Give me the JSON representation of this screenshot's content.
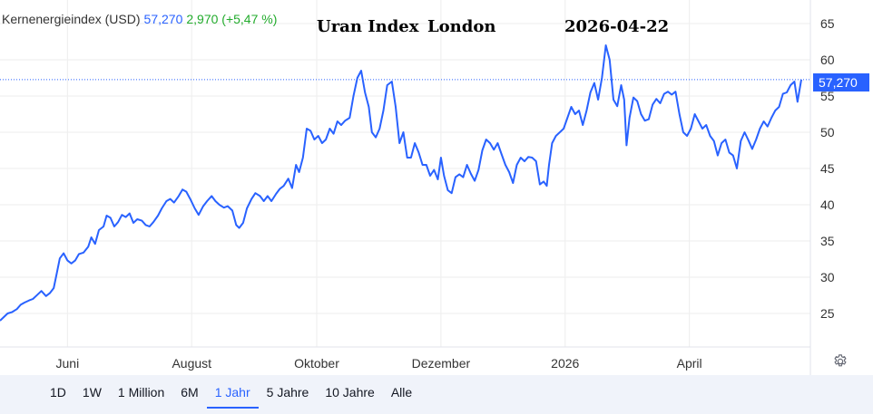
{
  "legend": {
    "name": "Kernenergieindex (USD)",
    "price": "57,270",
    "change": "2,970 (+5,47 %)"
  },
  "overlay": {
    "title": "Uran Index",
    "location": "London",
    "date": "2026-04-22"
  },
  "price_tag": "57,270",
  "colors": {
    "line": "#2962ff",
    "positive": "#22ab2c",
    "grid": "#eeeeee",
    "background": "#ffffff",
    "bar": "#f0f3fa"
  },
  "settings_icon": "gear-icon",
  "time_ranges": {
    "items": [
      {
        "label": "1D"
      },
      {
        "label": "1W"
      },
      {
        "label": "1 Million"
      },
      {
        "label": "6M"
      },
      {
        "label": "1 Jahr"
      },
      {
        "label": "5 Jahre"
      },
      {
        "label": "10 Jahre"
      },
      {
        "label": "Alle"
      }
    ],
    "active": "1 Jahr"
  },
  "chart_data": {
    "type": "line",
    "title": "",
    "xlabel": "",
    "ylabel": "",
    "ylim": [
      20,
      67
    ],
    "y_ticks": [
      25,
      30,
      35,
      40,
      45,
      50,
      55,
      60,
      65
    ],
    "grid": true,
    "x_ticks": [
      {
        "label": "Juni",
        "t": 0.088
      },
      {
        "label": "August",
        "t": 0.25
      },
      {
        "label": "Oktober",
        "t": 0.413
      },
      {
        "label": "Dezember",
        "t": 0.575
      },
      {
        "label": "2026",
        "t": 0.737
      },
      {
        "label": "April",
        "t": 0.899
      }
    ],
    "last_value": 57.27,
    "series": [
      {
        "points": [
          [
            0.0,
            24.0
          ],
          [
            0.005,
            24.5
          ],
          [
            0.01,
            25.0
          ],
          [
            0.016,
            25.2
          ],
          [
            0.022,
            25.6
          ],
          [
            0.027,
            26.2
          ],
          [
            0.032,
            26.5
          ],
          [
            0.038,
            26.8
          ],
          [
            0.043,
            27.0
          ],
          [
            0.049,
            27.6
          ],
          [
            0.054,
            28.1
          ],
          [
            0.06,
            27.4
          ],
          [
            0.065,
            27.8
          ],
          [
            0.07,
            28.5
          ],
          [
            0.074,
            30.5
          ],
          [
            0.078,
            32.6
          ],
          [
            0.083,
            33.3
          ],
          [
            0.088,
            32.3
          ],
          [
            0.093,
            31.9
          ],
          [
            0.098,
            32.3
          ],
          [
            0.103,
            33.2
          ],
          [
            0.109,
            33.4
          ],
          [
            0.115,
            34.2
          ],
          [
            0.119,
            35.5
          ],
          [
            0.124,
            34.6
          ],
          [
            0.129,
            36.5
          ],
          [
            0.135,
            37.0
          ],
          [
            0.139,
            38.5
          ],
          [
            0.144,
            38.2
          ],
          [
            0.149,
            37.0
          ],
          [
            0.154,
            37.6
          ],
          [
            0.159,
            38.6
          ],
          [
            0.164,
            38.3
          ],
          [
            0.169,
            38.8
          ],
          [
            0.174,
            37.5
          ],
          [
            0.179,
            38.0
          ],
          [
            0.185,
            37.8
          ],
          [
            0.19,
            37.2
          ],
          [
            0.195,
            37.0
          ],
          [
            0.2,
            37.6
          ],
          [
            0.206,
            38.5
          ],
          [
            0.211,
            39.5
          ],
          [
            0.217,
            40.5
          ],
          [
            0.222,
            40.8
          ],
          [
            0.227,
            40.3
          ],
          [
            0.233,
            41.2
          ],
          [
            0.238,
            42.1
          ],
          [
            0.243,
            41.8
          ],
          [
            0.248,
            40.8
          ],
          [
            0.254,
            39.5
          ],
          [
            0.259,
            38.6
          ],
          [
            0.265,
            39.8
          ],
          [
            0.27,
            40.5
          ],
          [
            0.276,
            41.2
          ],
          [
            0.281,
            40.5
          ],
          [
            0.286,
            40.0
          ],
          [
            0.292,
            39.6
          ],
          [
            0.297,
            39.8
          ],
          [
            0.303,
            39.2
          ],
          [
            0.308,
            37.2
          ],
          [
            0.312,
            36.8
          ],
          [
            0.317,
            37.5
          ],
          [
            0.322,
            39.5
          ],
          [
            0.328,
            40.8
          ],
          [
            0.333,
            41.6
          ],
          [
            0.339,
            41.2
          ],
          [
            0.344,
            40.5
          ],
          [
            0.349,
            41.2
          ],
          [
            0.354,
            40.5
          ],
          [
            0.36,
            41.5
          ],
          [
            0.365,
            42.2
          ],
          [
            0.37,
            42.6
          ],
          [
            0.376,
            43.6
          ],
          [
            0.381,
            42.3
          ],
          [
            0.386,
            45.5
          ],
          [
            0.39,
            44.5
          ],
          [
            0.395,
            46.5
          ],
          [
            0.4,
            50.5
          ],
          [
            0.405,
            50.2
          ],
          [
            0.41,
            49.0
          ],
          [
            0.415,
            49.5
          ],
          [
            0.42,
            48.5
          ],
          [
            0.425,
            49.0
          ],
          [
            0.43,
            50.5
          ],
          [
            0.435,
            49.8
          ],
          [
            0.44,
            51.5
          ],
          [
            0.445,
            51.0
          ],
          [
            0.45,
            51.6
          ],
          [
            0.456,
            52.0
          ],
          [
            0.461,
            55.0
          ],
          [
            0.466,
            57.5
          ],
          [
            0.471,
            58.5
          ],
          [
            0.476,
            55.5
          ],
          [
            0.481,
            53.5
          ],
          [
            0.485,
            50.0
          ],
          [
            0.49,
            49.3
          ],
          [
            0.495,
            50.5
          ],
          [
            0.5,
            53.0
          ],
          [
            0.505,
            56.5
          ],
          [
            0.511,
            57.0
          ],
          [
            0.516,
            53.5
          ],
          [
            0.521,
            48.5
          ],
          [
            0.526,
            50.0
          ],
          [
            0.531,
            46.5
          ],
          [
            0.536,
            46.5
          ],
          [
            0.541,
            48.5
          ],
          [
            0.546,
            47.2
          ],
          [
            0.551,
            45.5
          ],
          [
            0.556,
            45.5
          ],
          [
            0.561,
            44.0
          ],
          [
            0.566,
            44.8
          ],
          [
            0.571,
            43.5
          ],
          [
            0.575,
            46.5
          ],
          [
            0.579,
            44.0
          ],
          [
            0.584,
            42.0
          ],
          [
            0.589,
            41.6
          ],
          [
            0.594,
            43.8
          ],
          [
            0.599,
            44.2
          ],
          [
            0.604,
            43.8
          ],
          [
            0.609,
            45.5
          ],
          [
            0.614,
            44.3
          ],
          [
            0.619,
            43.3
          ],
          [
            0.624,
            44.8
          ],
          [
            0.629,
            47.5
          ],
          [
            0.634,
            49.0
          ],
          [
            0.639,
            48.5
          ],
          [
            0.644,
            47.6
          ],
          [
            0.649,
            48.5
          ],
          [
            0.654,
            47.0
          ],
          [
            0.659,
            45.5
          ],
          [
            0.664,
            44.5
          ],
          [
            0.669,
            43.0
          ],
          [
            0.674,
            45.5
          ],
          [
            0.679,
            46.5
          ],
          [
            0.684,
            46.0
          ],
          [
            0.689,
            46.6
          ],
          [
            0.694,
            46.5
          ],
          [
            0.699,
            46.0
          ],
          [
            0.704,
            42.8
          ],
          [
            0.709,
            43.2
          ],
          [
            0.713,
            42.6
          ],
          [
            0.716,
            45.5
          ],
          [
            0.72,
            48.5
          ],
          [
            0.725,
            49.5
          ],
          [
            0.73,
            50.0
          ],
          [
            0.735,
            50.5
          ],
          [
            0.74,
            52.0
          ],
          [
            0.745,
            53.5
          ],
          [
            0.75,
            52.5
          ],
          [
            0.755,
            53.0
          ],
          [
            0.76,
            51.0
          ],
          [
            0.765,
            53.0
          ],
          [
            0.77,
            55.5
          ],
          [
            0.775,
            56.8
          ],
          [
            0.78,
            54.5
          ],
          [
            0.785,
            57.5
          ],
          [
            0.79,
            62.0
          ],
          [
            0.795,
            60.0
          ],
          [
            0.8,
            54.5
          ],
          [
            0.805,
            53.6
          ],
          [
            0.81,
            56.5
          ],
          [
            0.814,
            54.5
          ],
          [
            0.817,
            48.2
          ],
          [
            0.821,
            52.0
          ],
          [
            0.826,
            54.8
          ],
          [
            0.831,
            54.3
          ],
          [
            0.836,
            52.5
          ],
          [
            0.841,
            51.6
          ],
          [
            0.846,
            51.8
          ],
          [
            0.851,
            53.8
          ],
          [
            0.856,
            54.6
          ],
          [
            0.861,
            54.0
          ],
          [
            0.866,
            55.3
          ],
          [
            0.871,
            55.6
          ],
          [
            0.876,
            55.2
          ],
          [
            0.881,
            55.6
          ],
          [
            0.886,
            52.5
          ],
          [
            0.891,
            50.0
          ],
          [
            0.896,
            49.5
          ],
          [
            0.901,
            50.5
          ],
          [
            0.906,
            52.5
          ],
          [
            0.911,
            51.5
          ],
          [
            0.916,
            50.5
          ],
          [
            0.921,
            51.0
          ],
          [
            0.926,
            49.5
          ],
          [
            0.931,
            48.8
          ],
          [
            0.936,
            46.8
          ],
          [
            0.941,
            48.5
          ],
          [
            0.946,
            49.0
          ],
          [
            0.951,
            47.2
          ],
          [
            0.956,
            46.8
          ],
          [
            0.961,
            45.0
          ],
          [
            0.966,
            48.8
          ],
          [
            0.971,
            50.0
          ],
          [
            0.976,
            48.9
          ],
          [
            0.981,
            47.7
          ],
          [
            0.986,
            49.0
          ],
          [
            0.991,
            50.5
          ],
          [
            0.996,
            51.5
          ],
          [
            1.001,
            50.8
          ],
          [
            1.006,
            52.0
          ],
          [
            1.011,
            53.0
          ],
          [
            1.016,
            53.5
          ],
          [
            1.021,
            55.3
          ],
          [
            1.026,
            55.5
          ],
          [
            1.031,
            56.5
          ],
          [
            1.036,
            57.0
          ],
          [
            1.04,
            54.2
          ],
          [
            1.045,
            57.27
          ]
        ]
      }
    ]
  }
}
